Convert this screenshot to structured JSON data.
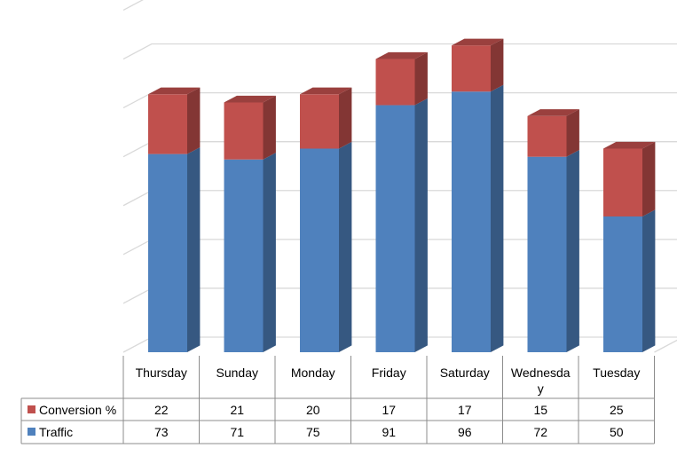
{
  "chart_data": {
    "type": "bar",
    "stacked": true,
    "three_d": true,
    "categories": [
      "Thursday",
      "Sunday",
      "Monday",
      "Friday",
      "Saturday",
      "Wednesday",
      "Tuesday"
    ],
    "series": [
      {
        "name": "Traffic",
        "values": [
          73,
          71,
          75,
          91,
          96,
          72,
          50
        ],
        "color": "#4F81BD"
      },
      {
        "name": "Conversion %",
        "values": [
          22,
          21,
          20,
          17,
          17,
          15,
          25
        ],
        "color": "#C0504D"
      }
    ],
    "ylim": [
      0,
      126
    ],
    "y_tick_labels_shown": false,
    "grid": true,
    "legend": "data-table",
    "data_table": true,
    "data_table_row_order": [
      "Conversion %",
      "Traffic"
    ]
  }
}
